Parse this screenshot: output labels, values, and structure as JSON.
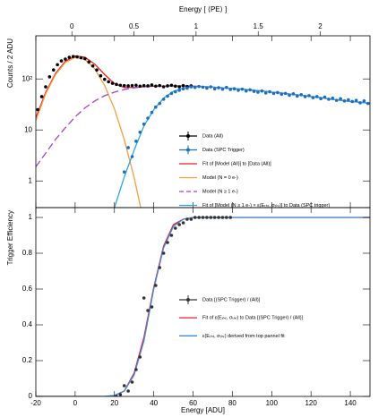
{
  "chart_data": [
    {
      "type": "line",
      "ylabel": "Counts / 2 ADU",
      "x2label": "Energy [ ⟨PE⟩ ]",
      "log_y": true,
      "legend": "lower right",
      "xlim": [
        -20,
        150
      ],
      "xticks": [
        -20,
        0,
        20,
        40,
        60,
        80,
        100,
        120,
        140
      ],
      "x2lim": [
        -0.29,
        2.4
      ],
      "x2ticks": [
        0,
        0.5,
        1,
        1.5,
        2
      ],
      "ylim": [
        0.3,
        700
      ],
      "yticks": [
        1,
        10,
        {
          "value": 100,
          "label": "10²"
        }
      ],
      "series": [
        {
          "name": "Data (All)",
          "color": "#000000",
          "style": "points",
          "x": [
            -19,
            -17,
            -15,
            -13,
            -11,
            -9,
            -7,
            -5,
            -3,
            -1,
            1,
            3,
            5,
            7,
            9,
            11,
            13,
            15,
            17,
            19,
            21,
            23,
            25,
            27,
            29,
            31,
            33,
            35,
            37,
            39,
            41,
            43,
            45,
            47,
            49,
            51,
            53,
            55,
            57,
            59
          ],
          "values": [
            25,
            45,
            70,
            110,
            150,
            190,
            225,
            245,
            265,
            275,
            270,
            260,
            250,
            215,
            180,
            150,
            115,
            98,
            88,
            82,
            78,
            75,
            74,
            73,
            74,
            75,
            72,
            74,
            73,
            76,
            72,
            74,
            70,
            73,
            75,
            72,
            70,
            74,
            71,
            73
          ]
        },
        {
          "name": "Data (SPC Trigger)",
          "color": "#1a6fc2",
          "style": "points",
          "x": [
            25,
            27,
            29,
            31,
            33,
            35,
            37,
            39,
            41,
            43,
            45,
            47,
            49,
            51,
            53,
            55,
            57,
            59,
            61,
            63,
            65,
            67,
            69,
            71,
            73,
            75,
            77,
            79,
            81,
            83,
            85,
            87,
            89,
            91,
            93,
            95,
            97,
            99,
            101,
            103,
            105,
            107,
            109,
            111,
            113,
            115,
            117,
            119,
            121,
            123,
            125,
            127,
            129,
            131,
            133,
            135,
            137,
            139,
            141,
            143,
            145,
            147,
            149
          ],
          "values": [
            1.5,
            4.5,
            3,
            6,
            9,
            13,
            17,
            22,
            28,
            33,
            40,
            46,
            52,
            56,
            60,
            64,
            66,
            70,
            68,
            71,
            69,
            66,
            70,
            64,
            67,
            63,
            68,
            62,
            64,
            60,
            63,
            58,
            61,
            57,
            55,
            58,
            53,
            56,
            52,
            54,
            50,
            52,
            48,
            51,
            46,
            49,
            45,
            47,
            43,
            45,
            41,
            44,
            40,
            42,
            38,
            41,
            37,
            39,
            36,
            38,
            34,
            37,
            33
          ]
        },
        {
          "name": "Fit of [Model (All)] to [Data (All)]",
          "color": "#e8202a",
          "style": "solid",
          "x": [
            -20,
            -15,
            -10,
            -5,
            0,
            5,
            10,
            15,
            20,
            25,
            30,
            35,
            40,
            45,
            50,
            55,
            60,
            65,
            70,
            75,
            80,
            85,
            90,
            95,
            100,
            105,
            110,
            115,
            120,
            125,
            130,
            135,
            140,
            145,
            150
          ],
          "values": [
            17.3,
            54.3,
            127.5,
            221,
            282,
            266,
            194,
            122,
            81,
            68,
            68,
            70.5,
            72,
            72.5,
            73,
            73,
            72,
            71,
            69,
            67,
            65,
            63,
            60,
            58,
            55,
            53,
            50,
            48,
            45,
            43,
            40,
            38,
            36,
            35,
            33
          ]
        },
        {
          "name": "Model (N = 0 e-)",
          "color": "#f0a040",
          "style": "solid",
          "x": [
            -20,
            -15,
            -10,
            -5,
            0,
            5,
            10,
            15,
            20,
            25,
            30,
            35,
            40,
            45,
            50,
            55,
            60,
            65,
            70,
            75,
            80,
            85,
            90,
            95,
            100,
            105,
            110,
            115,
            120,
            125,
            130,
            135,
            140,
            145,
            150
          ],
          "values": [
            15.4,
            50.8,
            121,
            210,
            264,
            239,
            157,
            74.8,
            25.8,
            6.44,
            1.17,
            0.153,
            null,
            null,
            null,
            null,
            null,
            null,
            null,
            null,
            null,
            null,
            null,
            null,
            null,
            null,
            null,
            null,
            null,
            null,
            null,
            null,
            null,
            null,
            null
          ]
        },
        {
          "name": "Model (N ≥ 1 e-)",
          "color": "#a040e0",
          "style": "dashed",
          "x": [
            -20,
            -15,
            -10,
            -5,
            0,
            5,
            10,
            15,
            20,
            25,
            30,
            35,
            40,
            45,
            50,
            55,
            60,
            65,
            70,
            75,
            80,
            85,
            90,
            95,
            100,
            105,
            110,
            115,
            120,
            125,
            130,
            135,
            140,
            145,
            150
          ],
          "values": [
            1.9,
            3.5,
            6.5,
            11,
            18,
            27,
            37,
            47,
            55,
            62,
            67,
            70,
            72,
            72.5,
            73,
            73,
            72,
            71,
            69,
            67,
            65,
            63,
            60,
            58,
            55,
            53,
            50,
            48,
            45,
            43,
            40,
            38,
            36,
            35,
            33
          ]
        },
        {
          "name": "Fit of [Model (N ≥ 1 e-) × ε(Eₜₕᵣ, σₜₕᵣ)] to Data (SPC trigger)",
          "color": "#2aa8e0",
          "style": "solid",
          "x": [
            -20,
            -15,
            -10,
            -5,
            0,
            5,
            10,
            15,
            20,
            25,
            30,
            35,
            40,
            45,
            50,
            55,
            60,
            65,
            70,
            75,
            80,
            85,
            90,
            95,
            100,
            105,
            110,
            115,
            120,
            125,
            130,
            135,
            140,
            145,
            150
          ],
          "values": [
            null,
            null,
            null,
            null,
            null,
            null,
            null,
            null,
            0.3,
            1.2,
            4,
            12,
            25,
            42,
            57,
            66,
            70,
            71,
            69,
            67,
            65,
            63,
            60,
            58,
            55,
            53,
            50,
            48,
            45,
            43,
            40,
            38,
            36,
            35,
            33
          ]
        }
      ]
    },
    {
      "type": "line",
      "ylabel": "Trigger Efficiency",
      "xlabel": "Energy [ADU]",
      "log_y": false,
      "legend": "center right",
      "xlim": [
        -20,
        150
      ],
      "xticks": [
        -20,
        0,
        20,
        40,
        60,
        80,
        100,
        120,
        140
      ],
      "ylim": [
        0,
        1.055
      ],
      "yticks": [
        0,
        0.2,
        0.4,
        0.6,
        0.8,
        1
      ],
      "series": [
        {
          "name": "Data [(SPC Trigger) / (All)]",
          "color": "#333333",
          "style": "points",
          "x": [
            21,
            23,
            25,
            27,
            29,
            31,
            33,
            35,
            37,
            39,
            41,
            43,
            45,
            47,
            49,
            51,
            53,
            55,
            57,
            59,
            61,
            63,
            65,
            67,
            69,
            71,
            73,
            75,
            77,
            79
          ],
          "values": [
            0,
            0.01,
            0.06,
            0.03,
            0.08,
            0.15,
            0.22,
            0.55,
            0.48,
            0.5,
            0.62,
            0.72,
            0.8,
            0.86,
            0.9,
            0.94,
            0.96,
            0.97,
            0.99,
            0.99,
            1,
            1,
            1,
            1,
            1,
            1,
            1,
            1,
            1,
            1
          ]
        },
        {
          "name": "Fit of ε(Eₜₕᵣ, σₜₕᵣ) to Data [(SPC Trigger) / (All)]",
          "color": "#e8202a",
          "style": "solid",
          "x": [
            -20,
            -15,
            -10,
            -5,
            0,
            5,
            10,
            15,
            20,
            25,
            30,
            35,
            40,
            45,
            50,
            55,
            60,
            65,
            70,
            75,
            80,
            85,
            90,
            95,
            100,
            105,
            110,
            115,
            120,
            125,
            130,
            135,
            140,
            145,
            150
          ],
          "values": [
            0,
            0,
            0,
            0,
            0,
            0,
            0,
            0,
            0.005,
            0.03,
            0.13,
            0.33,
            0.61,
            0.84,
            0.96,
            0.99,
            1,
            1,
            1,
            1,
            1,
            1,
            1,
            1,
            1,
            1,
            1,
            1,
            1,
            1,
            1,
            1,
            1,
            1,
            1
          ]
        },
        {
          "name": "ε(Eₜₕᵣ, σₜₕᵣ) derived from top pannel fit",
          "color": "#3a8ee0",
          "style": "solid",
          "x": [
            -20,
            -15,
            -10,
            -5,
            0,
            5,
            10,
            15,
            20,
            25,
            30,
            35,
            40,
            45,
            50,
            55,
            60,
            65,
            70,
            75,
            80,
            85,
            90,
            95,
            100,
            105,
            110,
            115,
            120,
            125,
            130,
            135,
            140,
            145,
            150
          ],
          "values": [
            0,
            0,
            0,
            0,
            0,
            0,
            0,
            0,
            0.005,
            0.03,
            0.12,
            0.31,
            0.6,
            0.83,
            0.95,
            0.99,
            1,
            1,
            1,
            1,
            1,
            1,
            1,
            1,
            1,
            1,
            1,
            1,
            1,
            1,
            1,
            1,
            1,
            1,
            1
          ]
        }
      ]
    }
  ]
}
